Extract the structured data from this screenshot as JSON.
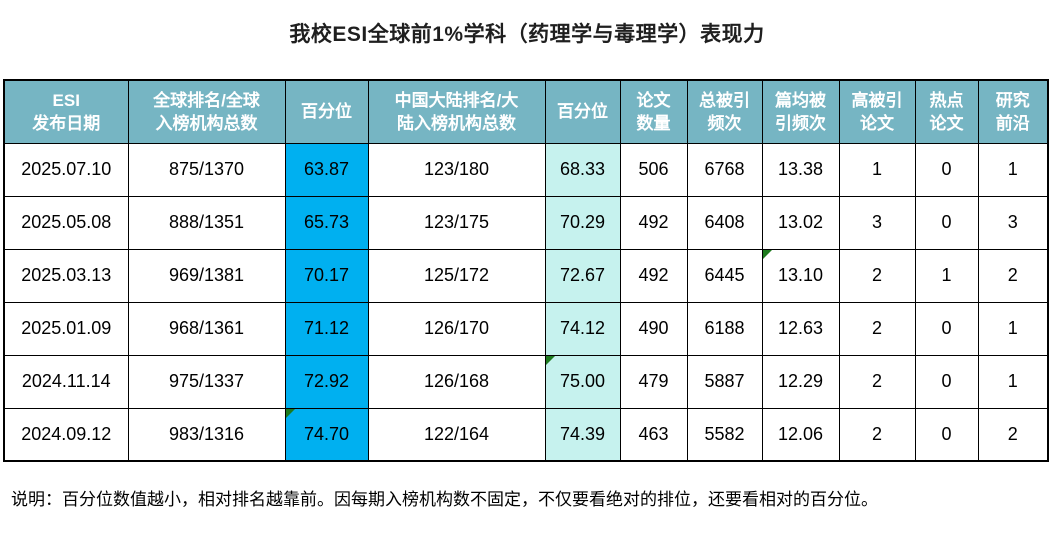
{
  "title": "我校ESI全球前1%学科（药理学与毒理学）表现力",
  "note": "说明：百分位数值越小，相对排名越靠前。因每期入榜机构数不固定，不仅要看绝对的排位，还要看相对的百分位。",
  "colors": {
    "header_bg": "#76B5C3",
    "header_text": "#FFFFFF",
    "pct_global_bg": "#00B0F0",
    "pct_china_bg": "#C6F2EE",
    "border": "#000000",
    "flag": "#1E7B1E"
  },
  "table": {
    "columns": [
      {
        "key": "date",
        "label": "ESI\n发布日期",
        "cls": ""
      },
      {
        "key": "global_rank",
        "label": "全球排名/全球\n入榜机构总数",
        "cls": ""
      },
      {
        "key": "global_pct",
        "label": "百分位",
        "cls": "p1"
      },
      {
        "key": "china_rank",
        "label": "中国大陆排名/大\n陆入榜机构总数",
        "cls": ""
      },
      {
        "key": "china_pct",
        "label": "百分位",
        "cls": "p2"
      },
      {
        "key": "papers",
        "label": "论文\n数量",
        "cls": ""
      },
      {
        "key": "cites",
        "label": "总被引\n频次",
        "cls": ""
      },
      {
        "key": "cpp",
        "label": "篇均被\n引频次",
        "cls": ""
      },
      {
        "key": "high",
        "label": "高被引\n论文",
        "cls": ""
      },
      {
        "key": "hot",
        "label": "热点\n论文",
        "cls": ""
      },
      {
        "key": "front",
        "label": "研究\n前沿",
        "cls": ""
      }
    ],
    "rows": [
      {
        "values": {
          "date": "2025.07.10",
          "global_rank": "875/1370",
          "global_pct": "63.87",
          "china_rank": "123/180",
          "china_pct": "68.33",
          "papers": "506",
          "cites": "6768",
          "cpp": "13.38",
          "high": "1",
          "hot": "0",
          "front": "1"
        },
        "flags": []
      },
      {
        "values": {
          "date": "2025.05.08",
          "global_rank": "888/1351",
          "global_pct": "65.73",
          "china_rank": "123/175",
          "china_pct": "70.29",
          "papers": "492",
          "cites": "6408",
          "cpp": "13.02",
          "high": "3",
          "hot": "0",
          "front": "3"
        },
        "flags": []
      },
      {
        "values": {
          "date": "2025.03.13",
          "global_rank": "969/1381",
          "global_pct": "70.17",
          "china_rank": "125/172",
          "china_pct": "72.67",
          "papers": "492",
          "cites": "6445",
          "cpp": "13.10",
          "high": "2",
          "hot": "1",
          "front": "2"
        },
        "flags": [
          "cpp"
        ]
      },
      {
        "values": {
          "date": "2025.01.09",
          "global_rank": "968/1361",
          "global_pct": "71.12",
          "china_rank": "126/170",
          "china_pct": "74.12",
          "papers": "490",
          "cites": "6188",
          "cpp": "12.63",
          "high": "2",
          "hot": "0",
          "front": "1"
        },
        "flags": []
      },
      {
        "values": {
          "date": "2024.11.14",
          "global_rank": "975/1337",
          "global_pct": "72.92",
          "china_rank": "126/168",
          "china_pct": "75.00",
          "papers": "479",
          "cites": "5887",
          "cpp": "12.29",
          "high": "2",
          "hot": "0",
          "front": "1"
        },
        "flags": [
          "china_pct"
        ]
      },
      {
        "values": {
          "date": "2024.09.12",
          "global_rank": "983/1316",
          "global_pct": "74.70",
          "china_rank": "122/164",
          "china_pct": "74.39",
          "papers": "463",
          "cites": "5582",
          "cpp": "12.06",
          "high": "2",
          "hot": "0",
          "front": "2"
        },
        "flags": [
          "global_pct"
        ]
      }
    ]
  },
  "chart_data": {
    "type": "table",
    "title": "我校ESI全球前1%学科（药理学与毒理学）表现力",
    "categories": [
      "ESI 发布日期",
      "全球排名/全球入榜机构总数",
      "百分位",
      "中国大陆排名/大陆入榜机构总数",
      "百分位",
      "论文数量",
      "总被引频次",
      "篇均被引频次",
      "高被引论文",
      "热点论文",
      "研究前沿"
    ],
    "rows": [
      [
        "2025.07.10",
        "875/1370",
        63.87,
        "123/180",
        68.33,
        506,
        6768,
        13.38,
        1,
        0,
        1
      ],
      [
        "2025.05.08",
        "888/1351",
        65.73,
        "123/175",
        70.29,
        492,
        6408,
        13.02,
        3,
        0,
        3
      ],
      [
        "2025.03.13",
        "969/1381",
        70.17,
        "125/172",
        72.67,
        492,
        6445,
        13.1,
        2,
        1,
        2
      ],
      [
        "2025.01.09",
        "968/1361",
        71.12,
        "126/170",
        74.12,
        490,
        6188,
        12.63,
        2,
        0,
        1
      ],
      [
        "2024.11.14",
        "975/1337",
        72.92,
        "126/168",
        75.0,
        479,
        5887,
        12.29,
        2,
        0,
        1
      ],
      [
        "2024.09.12",
        "983/1316",
        74.7,
        "122/164",
        74.39,
        463,
        5582,
        12.06,
        2,
        0,
        2
      ]
    ]
  }
}
